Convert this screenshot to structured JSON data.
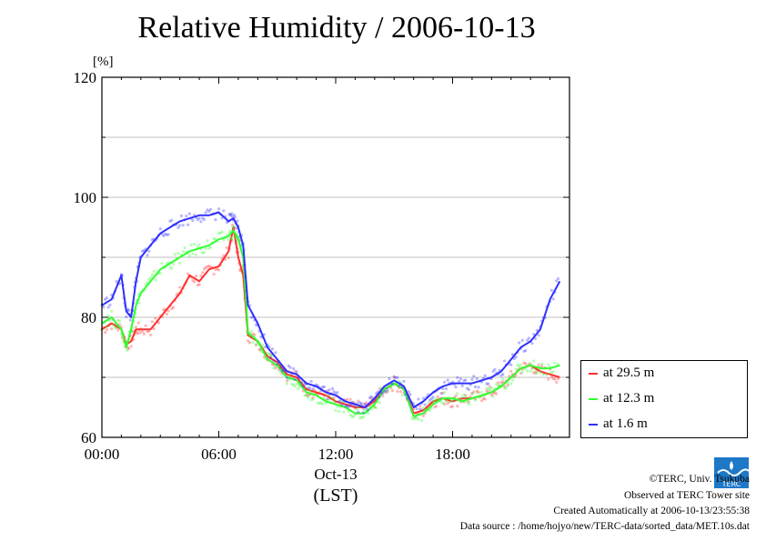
{
  "chart_data": {
    "type": "line",
    "title": "Relative Humidity / 2006-10-13",
    "ylabel": "[%]",
    "xlabel_date": "Oct-13",
    "xlabel_tz": "(LST)",
    "ylim": [
      60,
      120
    ],
    "yticks": [
      "60",
      "80",
      "100",
      "120"
    ],
    "xlim_hours": [
      0,
      24
    ],
    "xticks": [
      "00:00",
      "06:00",
      "12:00",
      "18:00"
    ],
    "grid": true,
    "legend_position": "right",
    "series": [
      {
        "name": "at 29.5 m",
        "color": "#ff3030",
        "x_hours": [
          0,
          0.5,
          1.0,
          1.25,
          1.5,
          1.75,
          2.0,
          2.5,
          3.0,
          3.5,
          4.0,
          4.5,
          5.0,
          5.5,
          6.0,
          6.5,
          6.75,
          7.0,
          7.25,
          7.5,
          8.0,
          8.5,
          9.0,
          9.5,
          10.0,
          10.5,
          11.0,
          11.5,
          12.0,
          12.5,
          13.0,
          13.5,
          14.0,
          14.5,
          15.0,
          15.5,
          16.0,
          16.5,
          17.0,
          17.5,
          18.0,
          18.5,
          19.0,
          19.5,
          20.0,
          20.5,
          21.0,
          21.5,
          22.0,
          22.5,
          23.0,
          23.5
        ],
        "values": [
          78,
          79,
          78,
          75.5,
          76,
          78,
          78,
          78,
          80,
          82,
          84,
          87,
          86,
          88,
          88.5,
          91,
          95,
          90,
          87,
          77,
          76,
          73.5,
          72.5,
          70.5,
          70,
          68,
          67.5,
          67,
          66,
          65.5,
          65,
          65,
          66,
          68,
          69,
          68,
          64,
          64.5,
          66,
          66.5,
          66,
          66.5,
          66.5,
          67,
          67.5,
          68.5,
          70,
          71.5,
          72,
          71,
          70.5,
          70
        ]
      },
      {
        "name": "at 12.3 m",
        "color": "#30ff30",
        "x_hours": [
          0,
          0.5,
          1.0,
          1.25,
          1.5,
          1.75,
          2.0,
          2.5,
          3.0,
          3.5,
          4.0,
          4.5,
          5.0,
          5.5,
          6.0,
          6.5,
          6.75,
          7.0,
          7.25,
          7.5,
          8.0,
          8.5,
          9.0,
          9.5,
          10.0,
          10.5,
          11.0,
          11.5,
          12.0,
          12.5,
          13.0,
          13.5,
          14.0,
          14.5,
          15.0,
          15.5,
          16.0,
          16.5,
          17.0,
          17.5,
          18.0,
          18.5,
          19.0,
          19.5,
          20.0,
          20.5,
          21.0,
          21.5,
          22.0,
          22.5,
          23.0,
          23.5
        ],
        "values": [
          79,
          80,
          78,
          75,
          78,
          82,
          84,
          86,
          88,
          89,
          90,
          91,
          91.5,
          92,
          93,
          93.5,
          94.5,
          93,
          90,
          77.5,
          76,
          73,
          72,
          70,
          69.5,
          67.5,
          67,
          66,
          65.5,
          65,
          64,
          64,
          65.5,
          68,
          69,
          68,
          63.5,
          64,
          65.5,
          66.5,
          66.5,
          66,
          66.5,
          67,
          67.5,
          68.5,
          70,
          71.5,
          72,
          71.5,
          71.5,
          72
        ]
      },
      {
        "name": "at 1.6 m",
        "color": "#3030ff",
        "x_hours": [
          0,
          0.5,
          1.0,
          1.25,
          1.5,
          1.75,
          2.0,
          2.5,
          3.0,
          3.5,
          4.0,
          4.5,
          5.0,
          5.5,
          6.0,
          6.5,
          6.75,
          7.0,
          7.25,
          7.5,
          8.0,
          8.5,
          9.0,
          9.5,
          10.0,
          10.5,
          11.0,
          11.5,
          12.0,
          12.5,
          13.0,
          13.5,
          14.0,
          14.5,
          15.0,
          15.5,
          16.0,
          16.5,
          17.0,
          17.5,
          18.0,
          18.5,
          19.0,
          19.5,
          20.0,
          20.5,
          21.0,
          21.5,
          22.0,
          22.5,
          23.0,
          23.5
        ],
        "values": [
          82,
          83,
          87,
          81,
          80,
          86,
          90,
          92,
          94,
          95,
          96,
          96.5,
          97,
          97,
          97.5,
          96,
          96.5,
          95,
          92,
          82,
          79,
          75,
          73,
          71,
          70.5,
          69,
          68.5,
          67.5,
          67,
          66,
          65.5,
          65,
          66.5,
          68.5,
          69.5,
          68.5,
          65,
          66,
          67.5,
          68.5,
          69,
          69,
          69,
          69.5,
          70,
          71,
          73,
          75,
          76,
          78,
          83,
          86
        ]
      }
    ]
  },
  "footer": {
    "copyright": "©TERC, Univ. Tsukuba",
    "site": "Observed at TERC Tower site",
    "created": "Created Automatically at 2006-10-13/23:55:38",
    "source": "Data source : /home/hojyo/new/TERC-data/sorted_data/MET.10s.dat"
  },
  "logo": {
    "text": "TERC"
  }
}
